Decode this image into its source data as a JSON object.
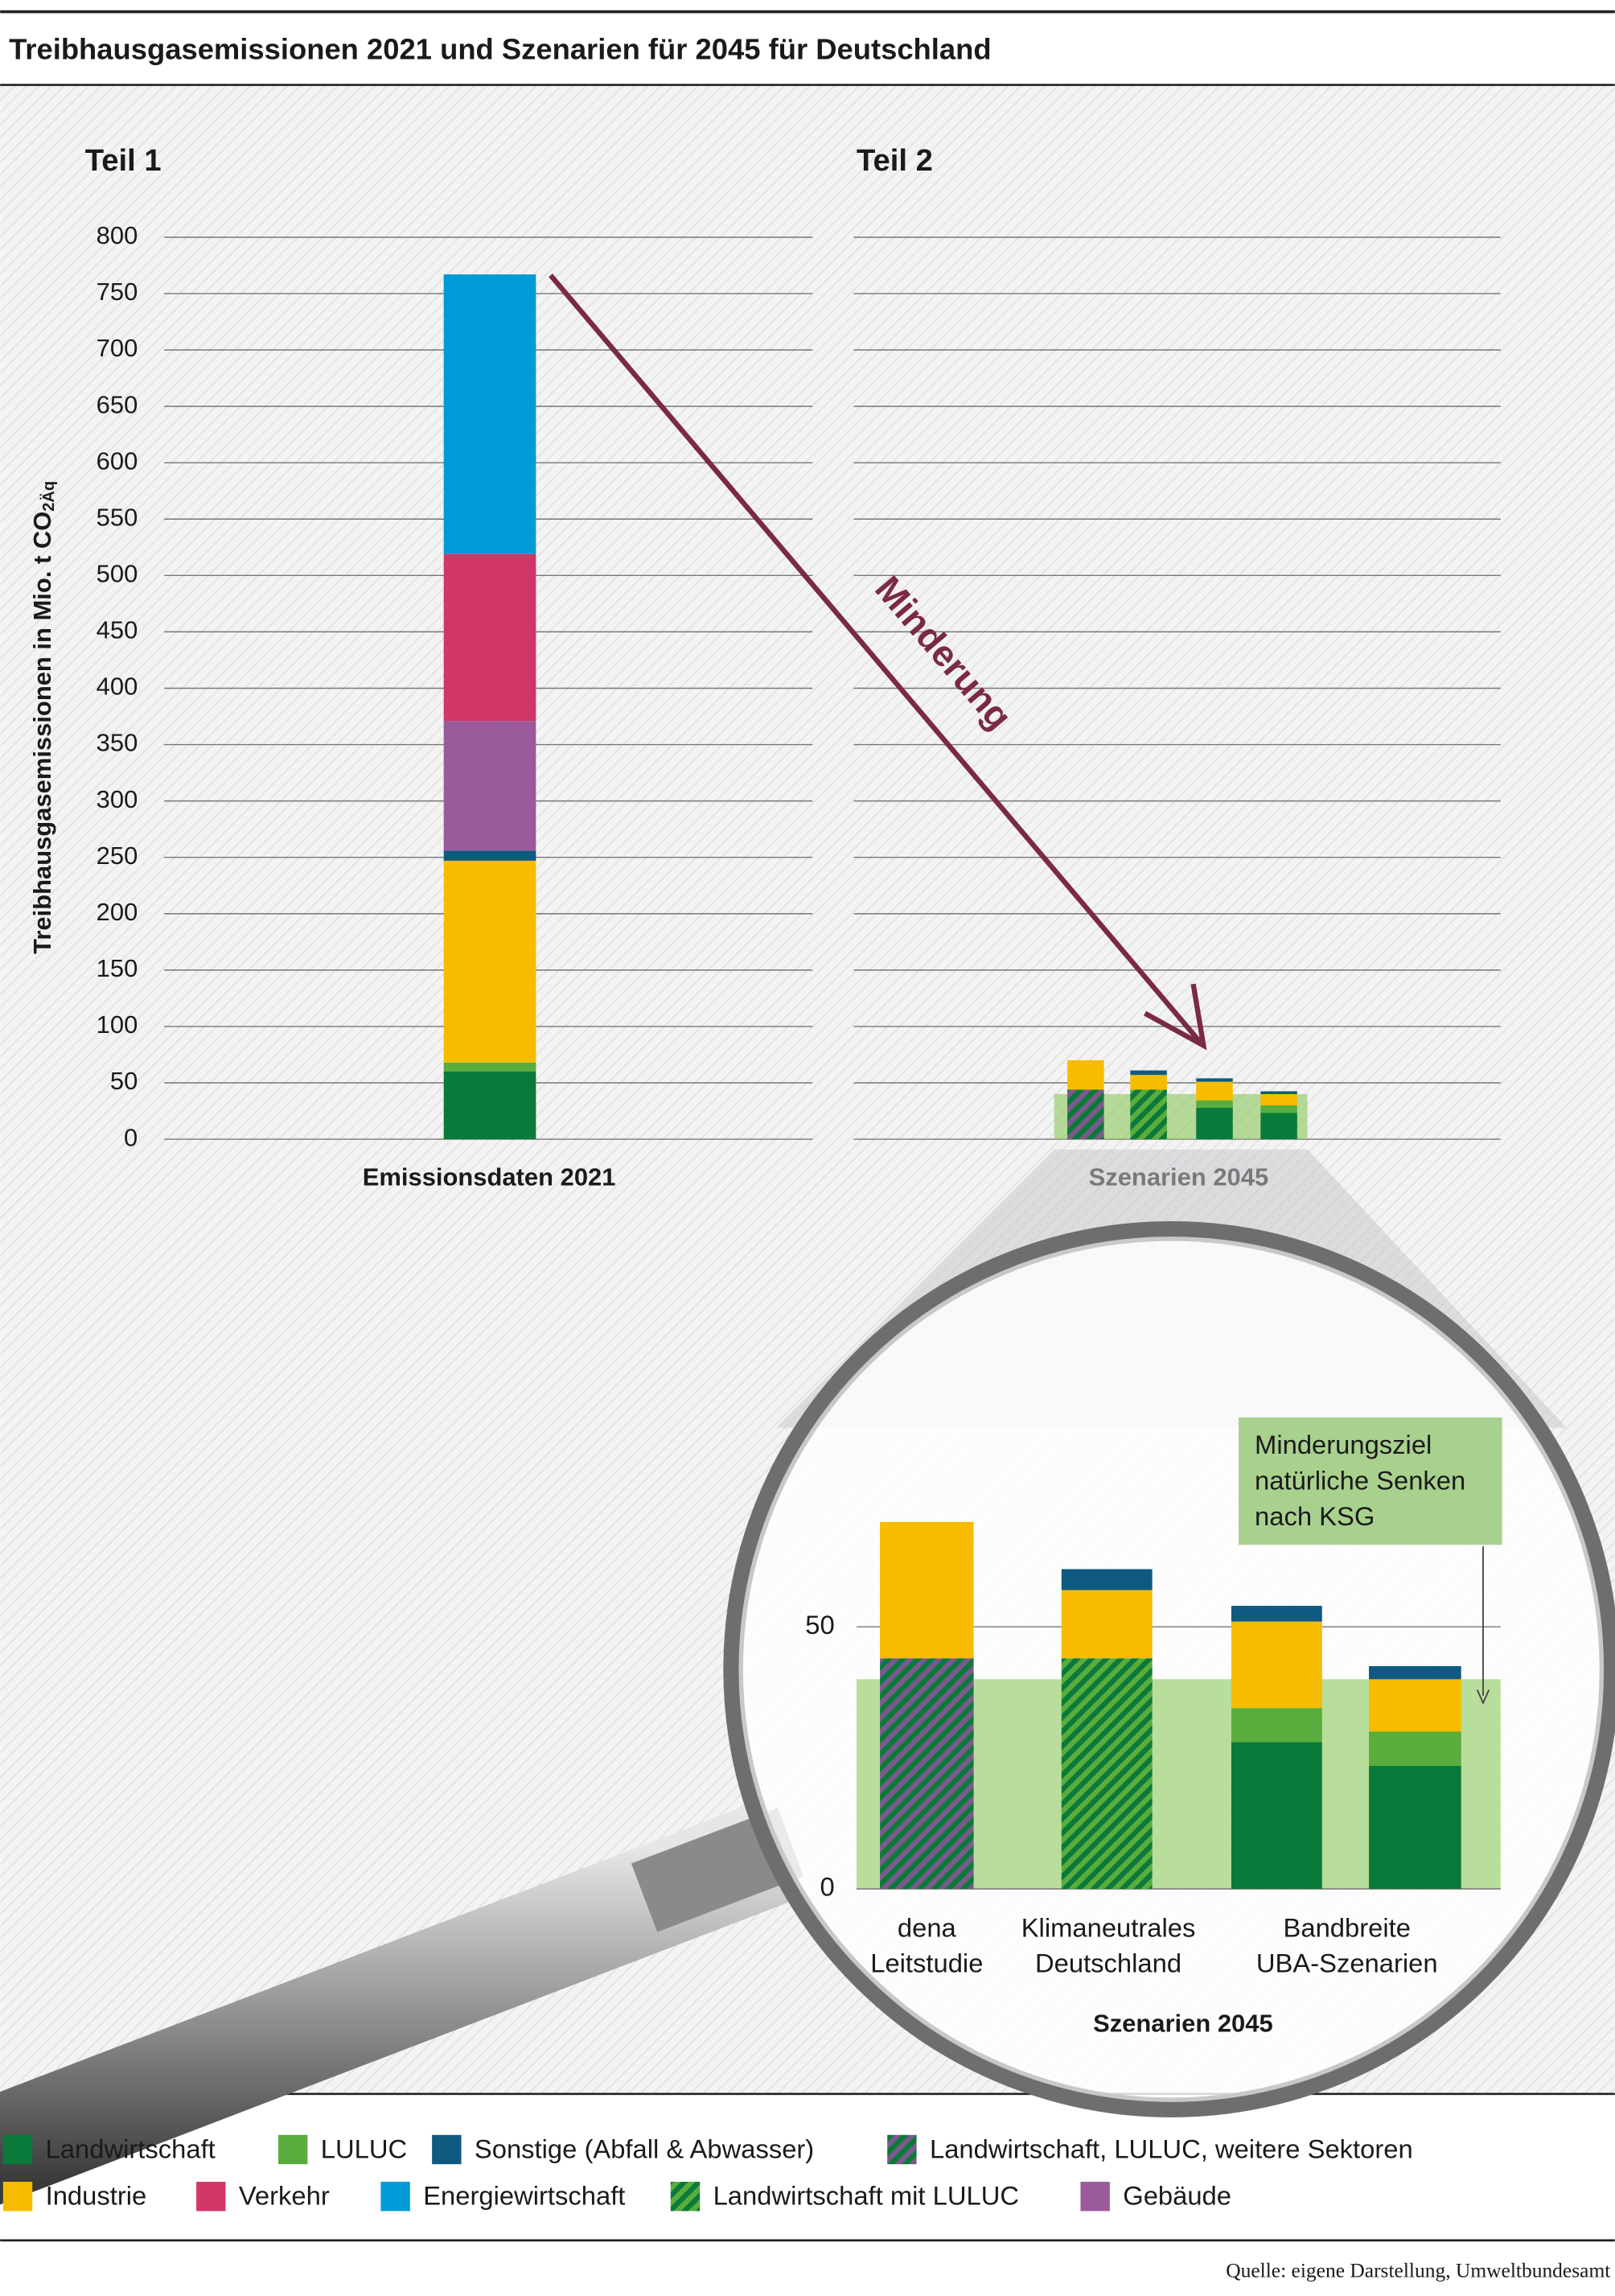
{
  "chart_data": {
    "type": "bar",
    "title": "Treibhausgasemissionen 2021 und Szenarien für 2045 für Deutschland",
    "y_label": {
      "text": "Treibhausgasemissionen in Mio. t CO",
      "sub": "2Äq"
    },
    "panels": [
      {
        "title": "Teil 1",
        "x_label": "Emissionsdaten 2021"
      },
      {
        "title": "Teil 2",
        "x_label": "Szenarien 2045"
      }
    ],
    "annotation": "Minderung",
    "ylim": [
      0,
      800
    ],
    "yticks": [
      0,
      50,
      100,
      150,
      200,
      250,
      300,
      350,
      400,
      450,
      500,
      550,
      600,
      650,
      700,
      750,
      800
    ],
    "grid": true,
    "categories": [
      null,
      [
        "dena",
        "Leitstudie"
      ],
      [
        "Klimaneutrales",
        "Deutschland"
      ],
      [
        "Bandbreite",
        "UBA-Szenarien"
      ],
      null
    ],
    "target": 40,
    "target_label": [
      "Minderungsziel",
      "natürliche Senken",
      "nach KSG"
    ],
    "zoom": {
      "ylim": [
        0,
        81
      ],
      "yticks": [
        0,
        50
      ],
      "x_label": "Szenarien 2045"
    },
    "series": [
      {
        "name": "Landwirtschaft",
        "color": "#0a7a3a",
        "values": [
          60,
          null,
          null,
          28,
          23.5
        ]
      },
      {
        "name": "Landwirtschaft, LULUC, weitere Sektoren",
        "color": "#0a7a3a",
        "hatch_color": "#7a5a8a",
        "values": [
          null,
          44,
          null,
          null,
          null
        ]
      },
      {
        "name": "Landwirtschaft mit LULUC",
        "color": "#0a7a3a",
        "hatch_color": "#5aac3c",
        "values": [
          null,
          null,
          44,
          null,
          null
        ]
      },
      {
        "name": "LULUC",
        "color": "#5aac3c",
        "values": [
          8,
          null,
          null,
          6.5,
          6.5
        ]
      },
      {
        "name": "Industrie",
        "color": "#f7bc00",
        "values": [
          179,
          26,
          13,
          16.5,
          10
        ]
      },
      {
        "name": "Sonstige (Abfall & Abwasser)",
        "color": "#0e5a80",
        "values": [
          9,
          null,
          4,
          3,
          2.5
        ]
      },
      {
        "name": "Gebäude",
        "color": "#9b5a9c",
        "values": [
          115,
          null,
          null,
          null,
          null
        ]
      },
      {
        "name": "Verkehr",
        "color": "#d03766",
        "values": [
          148,
          null,
          null,
          null,
          null
        ]
      },
      {
        "name": "Energiewirtschaft",
        "color": "#009bd6",
        "values": [
          248,
          null,
          null,
          null,
          null
        ]
      }
    ],
    "source": "Quelle: eigene Darstellung, Umweltbundesamt"
  }
}
